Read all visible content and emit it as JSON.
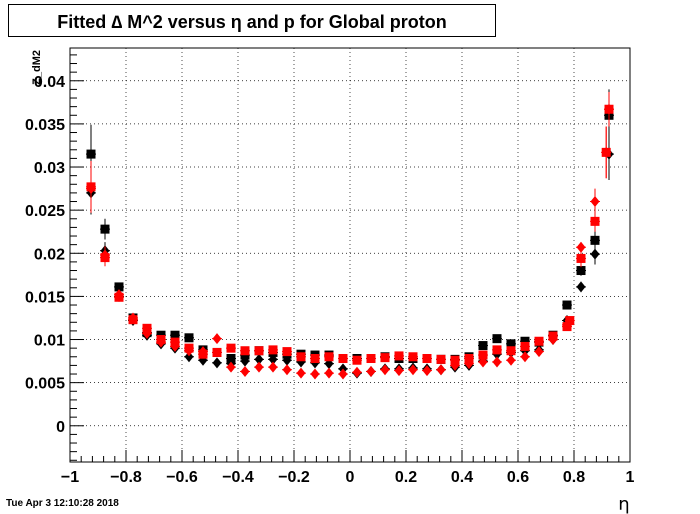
{
  "chart_data": {
    "type": "scatter",
    "title": "Fitted ∆ M^2 versus η and p for Global proton",
    "xlabel": "η",
    "ylabel": "Z_dM2",
    "xlim": [
      -1,
      1
    ],
    "ylim": [
      -0.0042,
      0.0438
    ],
    "xticks": [
      -1,
      -0.8,
      -0.6,
      -0.4,
      -0.2,
      0,
      0.2,
      0.4,
      0.6,
      0.8,
      1
    ],
    "xtick_labels": [
      "−1",
      "−0.8",
      "−0.6",
      "−0.4",
      "−0.2",
      "0",
      "0.2",
      "0.4",
      "0.6",
      "0.8",
      "1"
    ],
    "yticks": [
      0,
      0.005,
      0.01,
      0.015,
      0.02,
      0.025,
      0.03,
      0.035,
      0.04
    ],
    "ytick_labels": [
      "0",
      "0.005",
      "0.01",
      "0.015",
      "0.02",
      "0.025",
      "0.03",
      "0.035",
      "0.04"
    ],
    "grid": true,
    "x": [
      -0.925,
      -0.875,
      -0.825,
      -0.775,
      -0.725,
      -0.675,
      -0.625,
      -0.575,
      -0.525,
      -0.475,
      -0.425,
      -0.375,
      -0.325,
      -0.275,
      -0.225,
      -0.175,
      -0.125,
      -0.075,
      -0.025,
      0.025,
      0.075,
      0.125,
      0.175,
      0.225,
      0.275,
      0.325,
      0.375,
      0.425,
      0.475,
      0.525,
      0.575,
      0.625,
      0.675,
      0.725,
      0.775,
      0.825,
      0.875,
      0.925
    ],
    "series": [
      {
        "marker": "square",
        "color": "#000000",
        "values": [
          0.0315,
          0.0228,
          0.0161,
          0.0125,
          0.0108,
          0.0105,
          0.0105,
          0.0102,
          0.0088,
          0.0085,
          0.0078,
          0.0082,
          0.0087,
          0.0085,
          0.0083,
          0.0083,
          0.0082,
          0.0082,
          0.0078,
          0.0078,
          0.0078,
          0.008,
          0.0078,
          0.0078,
          0.0078,
          0.0077,
          0.0077,
          0.008,
          0.0093,
          0.0101,
          0.0095,
          0.0098,
          0.0097,
          0.0105,
          0.014,
          0.018,
          0.0215,
          0.036
        ],
        "errors": [
          0.0034,
          0.0012,
          0.0005,
          0.0004,
          0.0003,
          0.0003,
          0.0003,
          0.0003,
          0.0003,
          0.0003,
          0.0003,
          0.0003,
          0.0003,
          0.0003,
          0.0003,
          0.0003,
          0.0003,
          0.0003,
          0.0003,
          0.0003,
          0.0003,
          0.0003,
          0.0003,
          0.0003,
          0.0003,
          0.0003,
          0.0003,
          0.0003,
          0.0003,
          0.0003,
          0.0003,
          0.0003,
          0.0003,
          0.0003,
          0.0004,
          0.0006,
          0.0012,
          0.003
        ]
      },
      {
        "marker": "diamond",
        "color": "#000000",
        "values": [
          0.027,
          0.0203,
          0.015,
          0.0122,
          0.0105,
          0.0095,
          0.009,
          0.008,
          0.0076,
          0.0073,
          0.0072,
          0.0075,
          0.0077,
          0.0077,
          0.0076,
          0.0074,
          0.0073,
          0.0072,
          0.0066,
          0.0061,
          0.0063,
          0.0066,
          0.0066,
          0.0067,
          0.0066,
          0.0065,
          0.0068,
          0.007,
          0.0075,
          0.0083,
          0.0085,
          0.0087,
          0.0088,
          0.01,
          0.0122,
          0.0161,
          0.0199,
          0.0315
        ],
        "errors": [
          0.0025,
          0.001,
          0.0005,
          0.0004,
          0.0003,
          0.0003,
          0.0003,
          0.0003,
          0.0003,
          0.0003,
          0.0003,
          0.0003,
          0.0003,
          0.0003,
          0.0003,
          0.0003,
          0.0003,
          0.0003,
          0.0003,
          0.0003,
          0.0003,
          0.0003,
          0.0003,
          0.0003,
          0.0003,
          0.0003,
          0.0003,
          0.0003,
          0.0003,
          0.0003,
          0.0003,
          0.0003,
          0.0003,
          0.0003,
          0.0004,
          0.0006,
          0.0012,
          0.003
        ]
      },
      {
        "marker": "square",
        "color": "#ff0000",
        "values": [
          0.0277,
          0.0195,
          0.0149,
          0.0123,
          0.0113,
          0.01,
          0.0097,
          0.009,
          0.0083,
          0.0085,
          0.009,
          0.0087,
          0.0087,
          0.0088,
          0.0086,
          0.008,
          0.0078,
          0.008,
          0.0078,
          0.0076,
          0.0078,
          0.0079,
          0.0081,
          0.008,
          0.0078,
          0.0077,
          0.0076,
          0.0078,
          0.0082,
          0.0088,
          0.0087,
          0.0092,
          0.0098,
          0.0104,
          0.0115,
          0.0122,
          0.0194,
          0.0237,
          0.0317,
          0.0367
        ],
        "errors": [
          0.003,
          0.001,
          0.0005,
          0.0004,
          0.0003,
          0.0003,
          0.0003,
          0.0003,
          0.0003,
          0.0003,
          0.0003,
          0.0003,
          0.0003,
          0.0003,
          0.0003,
          0.0003,
          0.0003,
          0.0003,
          0.0003,
          0.0003,
          0.0003,
          0.0003,
          0.0003,
          0.0003,
          0.0003,
          0.0003,
          0.0003,
          0.0003,
          0.0003,
          0.0003,
          0.0003,
          0.0003,
          0.0003,
          0.0003,
          0.0003,
          0.0003,
          0.001,
          0.0012,
          0.003,
          0.002
        ],
        "x": [
          -0.925,
          -0.875,
          -0.825,
          -0.775,
          -0.725,
          -0.675,
          -0.625,
          -0.575,
          -0.525,
          -0.475,
          -0.425,
          -0.375,
          -0.325,
          -0.275,
          -0.225,
          -0.175,
          -0.125,
          -0.075,
          -0.025,
          0.025,
          0.075,
          0.125,
          0.175,
          0.225,
          0.275,
          0.325,
          0.375,
          0.425,
          0.475,
          0.525,
          0.575,
          0.625,
          0.675,
          0.725,
          0.775,
          0.785,
          0.825,
          0.875,
          0.915,
          0.925
        ]
      },
      {
        "marker": "diamond",
        "color": "#ff0000",
        "values": [
          0.0275,
          0.0198,
          0.0152,
          0.0125,
          0.0107,
          0.0097,
          0.0092,
          0.0087,
          0.0101,
          0.0086,
          0.0068,
          0.0063,
          0.0068,
          0.0068,
          0.0065,
          0.0061,
          0.006,
          0.0061,
          0.006,
          0.0062,
          0.0063,
          0.0065,
          0.0064,
          0.0065,
          0.0064,
          0.0065,
          0.007,
          0.0072,
          0.0074,
          0.0074,
          0.0076,
          0.008,
          0.0086,
          0.01,
          0.0117,
          0.0207,
          0.026,
          0.0317,
          0.0367
        ],
        "errors": [
          0.0025,
          0.001,
          0.0005,
          0.0004,
          0.0003,
          0.0003,
          0.0003,
          0.0003,
          0.0003,
          0.0003,
          0.0003,
          0.0003,
          0.0003,
          0.0003,
          0.0003,
          0.0003,
          0.0003,
          0.0003,
          0.0003,
          0.0003,
          0.0003,
          0.0003,
          0.0003,
          0.0003,
          0.0003,
          0.0003,
          0.0003,
          0.0003,
          0.0003,
          0.0003,
          0.0003,
          0.0003,
          0.0003,
          0.0003,
          0.0004,
          0.0006,
          0.0015,
          0.003,
          0.002
        ],
        "x": [
          -0.925,
          -0.875,
          -0.825,
          -0.775,
          -0.725,
          -0.675,
          -0.625,
          -0.575,
          -0.475,
          -0.525,
          -0.425,
          -0.375,
          -0.325,
          -0.275,
          -0.225,
          -0.175,
          -0.125,
          -0.075,
          -0.025,
          0.025,
          0.075,
          0.125,
          0.175,
          0.225,
          0.275,
          0.325,
          0.375,
          0.425,
          0.475,
          0.525,
          0.575,
          0.625,
          0.675,
          0.725,
          0.775,
          0.825,
          0.875,
          0.915,
          0.925
        ]
      }
    ]
  },
  "footer": {
    "timestamp": "Tue Apr  3 12:10:28 2018"
  }
}
